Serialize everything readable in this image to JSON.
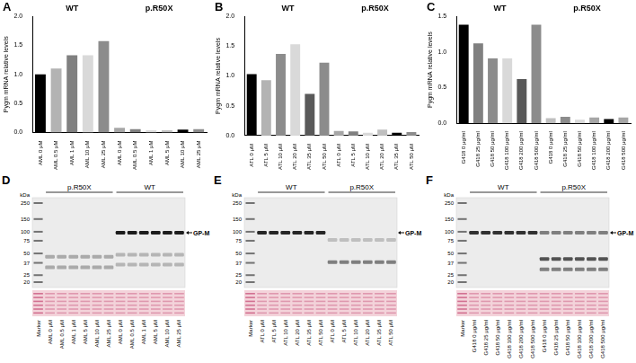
{
  "chart_data": [
    {
      "type": "bar",
      "title": "A",
      "y_label": "Pygm mRNA relative levels",
      "ylim": [
        0,
        2
      ],
      "yticks": [
        {
          "value": 0,
          "label": "0.0"
        },
        0.5,
        {
          "value": 1,
          "label": "1.0"
        },
        1.5,
        {
          "value": 2,
          "label": "2.0"
        }
      ],
      "grid": false,
      "groups": [
        {
          "name": "WT",
          "categories": [
            "AML 0 μM",
            "AML 0.5 μM",
            "AML 1 μM",
            "AML 10 μM",
            "AML 25 μM"
          ],
          "values": [
            1.0,
            1.1,
            1.33,
            1.33,
            1.57
          ],
          "colors": [
            "#000000",
            "#b3b3b3",
            "#808080",
            "#d9d9d9",
            "#8c8c8c"
          ]
        },
        {
          "name": "p.R50X",
          "categories": [
            "AML 0 μM",
            "AML 0.5 μM",
            "AML 1 μM",
            "AML 5 μM",
            "AML 10 μM",
            "AML 25 μM"
          ],
          "values": [
            0.08,
            0.06,
            0.04,
            0.04,
            0.05,
            0.06
          ],
          "colors": [
            "#a6a6a6",
            "#808080",
            "#d9d9d9",
            "#bfbfbf",
            "#000000",
            "#8c8c8c"
          ]
        }
      ]
    },
    {
      "type": "bar",
      "title": "B",
      "y_label": "Pygm mRNA relative levels",
      "ylim": [
        0,
        2
      ],
      "yticks": [
        {
          "value": 0,
          "label": "0.0"
        },
        0.5,
        {
          "value": 1,
          "label": "1.0"
        },
        1.5,
        {
          "value": 2,
          "label": "2.0"
        }
      ],
      "grid": false,
      "groups": [
        {
          "name": "WT",
          "categories": [
            "ATL 0 μM",
            "ATL 5 μM",
            "ATL 10 μM",
            "ATL 20 μM",
            "ATL 35 μM",
            "ATL 50 μM"
          ],
          "values": [
            1.03,
            0.93,
            1.37,
            1.53,
            0.7,
            1.22
          ],
          "colors": [
            "#000000",
            "#b3b3b3",
            "#8c8c8c",
            "#d9d9d9",
            "#595959",
            "#8c8c8c"
          ]
        },
        {
          "name": "p.R50X",
          "categories": [
            "ATL 0 μM",
            "ATL 5 μM",
            "ATL 10 μM",
            "ATL 20 μM",
            "ATL 35 μM",
            "ATL 50 μM"
          ],
          "values": [
            0.08,
            0.07,
            0.05,
            0.1,
            0.05,
            0.06
          ],
          "colors": [
            "#a6a6a6",
            "#808080",
            "#d9d9d9",
            "#bfbfbf",
            "#000000",
            "#8c8c8c"
          ]
        }
      ]
    },
    {
      "type": "bar",
      "title": "C",
      "y_label": "Pygm mRNA relative levels",
      "ylim": [
        0,
        1.5
      ],
      "yticks": [
        {
          "value": 0,
          "label": "0.0"
        },
        0.5,
        {
          "value": 1,
          "label": "1.0"
        },
        1.5
      ],
      "grid": false,
      "groups": [
        {
          "name": "WT",
          "categories": [
            "G418 0 μg/ml",
            "G418 25 μg/ml",
            "G418 50 μg/ml",
            "G418 100 μg/ml",
            "G418 200 μg/ml",
            "G418 500 μg/ml"
          ],
          "values": [
            1.38,
            1.12,
            0.91,
            0.91,
            0.62,
            1.38
          ],
          "colors": [
            "#000000",
            "#808080",
            "#8c8c8c",
            "#d9d9d9",
            "#595959",
            "#8c8c8c"
          ]
        },
        {
          "name": "p.R50X",
          "categories": [
            "G418 0 μg/ml",
            "G418 25 μg/ml",
            "G418 50 μg/ml",
            "G418 100 μg/ml",
            "G418 200 μg/ml",
            "G418 500 μg/ml"
          ],
          "values": [
            0.07,
            0.09,
            0.05,
            0.08,
            0.06,
            0.08
          ],
          "colors": [
            "#bfbfbf",
            "#8c8c8c",
            "#d9d9d9",
            "#a6a6a6",
            "#000000",
            "#a6a6a6"
          ]
        }
      ]
    }
  ],
  "blots": [
    {
      "title": "D",
      "marker_label": "Marker",
      "unit": "kDa",
      "marker_kda": [
        250,
        150,
        100,
        75,
        50,
        37,
        25,
        20
      ],
      "protein": "GP-M",
      "protein_kda": 97,
      "groups": [
        {
          "name": "p.R50X",
          "lanes": [
            "AML 0 μM",
            "AML 0.5 μM",
            "AML 1 μM",
            "AML 5 μM",
            "AML 10 μM",
            "AML 25 μM"
          ],
          "bands": [
            {
              "kda": 45,
              "intensity": 0.3
            },
            {
              "kda": 32,
              "intensity": 0.3
            }
          ]
        },
        {
          "name": "WT",
          "lanes": [
            "AML 0 μM",
            "AML 0.5 μM",
            "AML 1 μM",
            "AML 5 μM",
            "AML 10 μM",
            "AML 25 μM"
          ],
          "bands": [
            {
              "kda": 97,
              "intensity": 0.95
            },
            {
              "kda": 48,
              "intensity": 0.25
            },
            {
              "kda": 35,
              "intensity": 0.25
            }
          ]
        }
      ]
    },
    {
      "title": "E",
      "marker_label": "Marker",
      "unit": "kDa",
      "marker_kda": [
        250,
        150,
        100,
        75,
        50,
        37,
        25,
        20
      ],
      "protein": "GP-M",
      "protein_kda": 97,
      "groups": [
        {
          "name": "WT",
          "lanes": [
            "ATL 0 μM",
            "ATL 5 μM",
            "ATL 10 μM",
            "ATL 20 μM",
            "ATL 35 μM",
            "ATL 50 μM"
          ],
          "bands": [
            {
              "kda": 97,
              "intensity": 0.9
            }
          ]
        },
        {
          "name": "p.R50X",
          "lanes": [
            "ATL 0 μM",
            "ATL 5 μM",
            "ATL 10 μM",
            "ATL 20 μM",
            "ATL 35 μM",
            "ATL 50 μM"
          ],
          "bands": [
            {
              "kda": 77,
              "intensity": 0.2
            },
            {
              "kda": 38,
              "intensity": 0.5
            }
          ]
        }
      ]
    },
    {
      "title": "F",
      "marker_label": "Marker",
      "unit": "kDa",
      "marker_kda": [
        250,
        150,
        100,
        75,
        50,
        37,
        25,
        20
      ],
      "protein": "GP-M",
      "protein_kda": 97,
      "groups": [
        {
          "name": "WT",
          "lanes": [
            "G418 0 μg/ml",
            "G418 25 μg/ml",
            "G418 50 μg/ml",
            "G418 100 μg/ml",
            "G418 200 μg/ml",
            "G418 500 μg/ml"
          ],
          "bands": [
            {
              "kda": 97,
              "intensity": 0.85
            }
          ]
        },
        {
          "name": "p.R50X",
          "lanes": [
            "G418 0 μg/ml",
            "G418 25 μg/ml",
            "G418 50 μg/ml",
            "G418 100 μg/ml",
            "G418 200 μg/ml",
            "G418 500 μg/ml"
          ],
          "bands": [
            {
              "kda": 97,
              "intensity": 0.5
            },
            {
              "kda": 42,
              "intensity": 0.7
            },
            {
              "kda": 30,
              "intensity": 0.5
            }
          ]
        }
      ]
    }
  ]
}
